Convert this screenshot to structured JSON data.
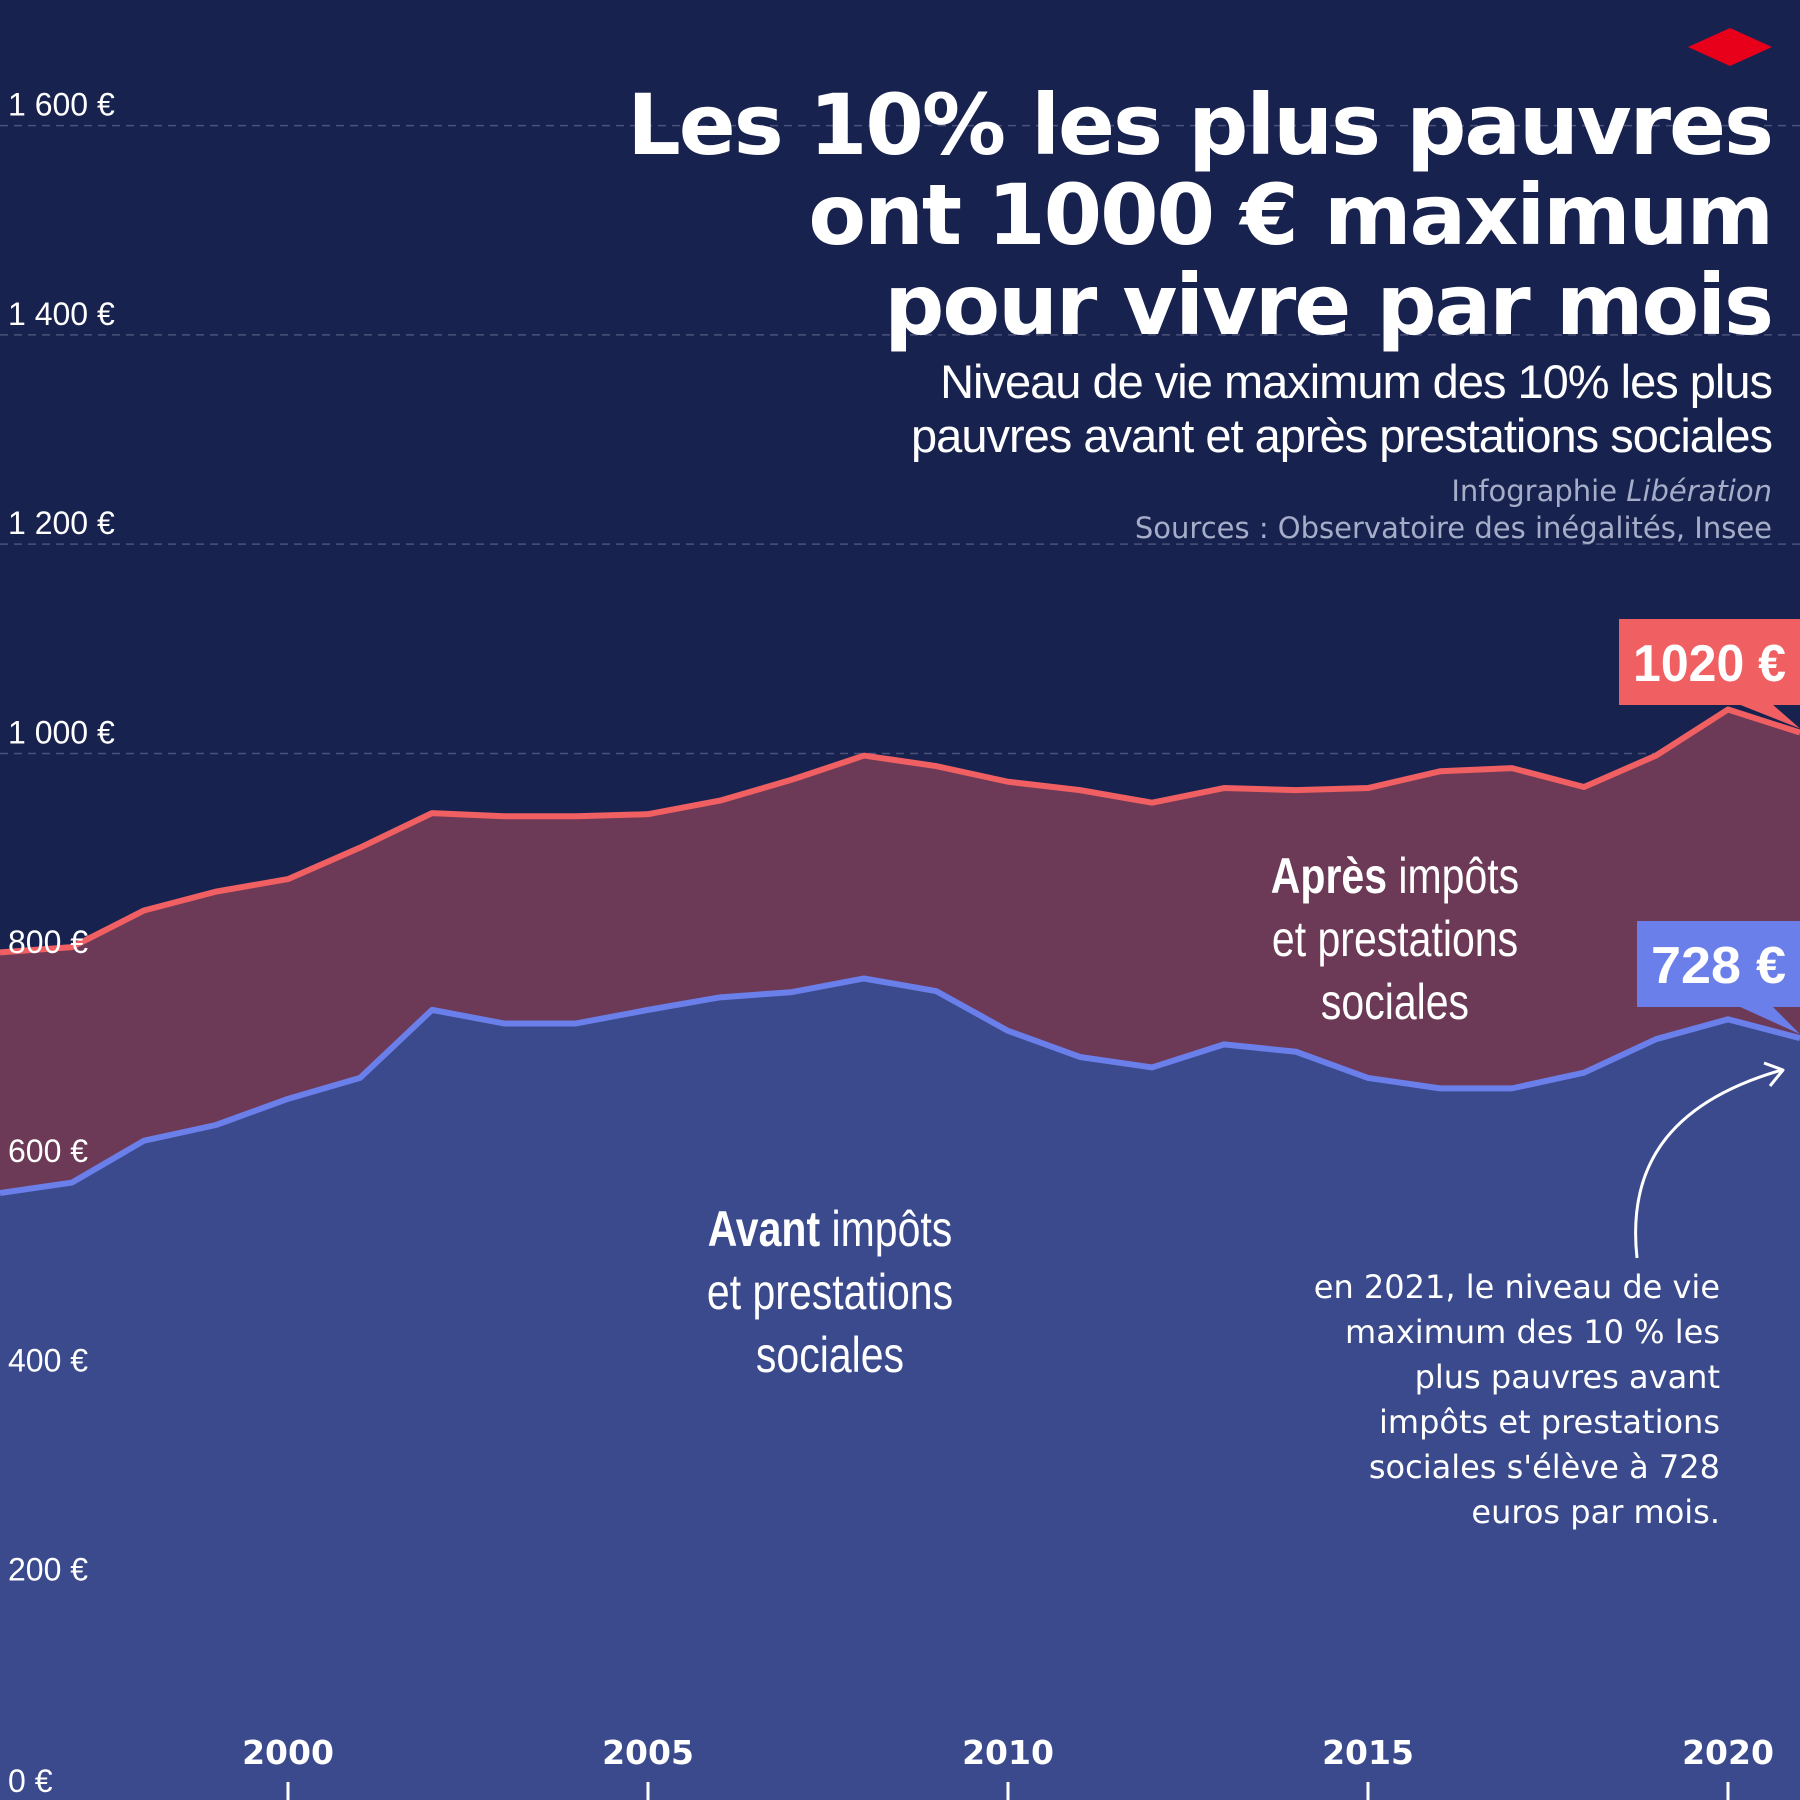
{
  "title": {
    "line1": "Les 10% les plus pauvres",
    "line2": "ont 1000 € maximum",
    "line3": "pour vivre par mois"
  },
  "subtitle": {
    "line1": "Niveau de vie maximum des 10% les plus",
    "line2": "pauvres avant et après prestations sociales"
  },
  "credit": {
    "infographie_prefix": "Infographie",
    "publication": "Libération",
    "sources": "Sources : Observatoire des inégalités, Insee"
  },
  "labels": {
    "after": {
      "bold": "Après",
      "rest_line1": " impôts",
      "line2": "et prestations",
      "line3": "sociales"
    },
    "before": {
      "bold": "Avant",
      "rest_line1": " impôts",
      "line2": "et prestations",
      "line3": "sociales"
    }
  },
  "callouts": {
    "after_value": "1020 €",
    "before_value": "728 €"
  },
  "annotation": {
    "line1": "en 2021, le niveau de vie",
    "line2": "maximum des 10 % les",
    "line3": "plus pauvres avant",
    "line4": "impôts et prestations",
    "line5": "sociales s'élève à 728",
    "line6": "euros par mois."
  },
  "colors": {
    "background": "#18224f",
    "after_line": "#f05f62",
    "after_fill": "#6c3a56",
    "before_line": "#6a7fea",
    "before_fill": "#3a4a8c",
    "after_callout": "#f05f62",
    "before_callout": "#6a7fea",
    "logo": "#e8001b",
    "gridline": "#4b5279"
  },
  "chart_data": {
    "type": "area",
    "x": [
      1996,
      1997,
      1998,
      1999,
      2000,
      2001,
      2002,
      2003,
      2004,
      2005,
      2006,
      2007,
      2008,
      2009,
      2010,
      2011,
      2012,
      2013,
      2014,
      2015,
      2016,
      2017,
      2018,
      2019,
      2020,
      2021
    ],
    "series": [
      {
        "name": "Après impôts et prestations sociales",
        "values": [
          810,
          815,
          850,
          868,
          880,
          910,
          943,
          940,
          940,
          942,
          955,
          975,
          998,
          988,
          973,
          965,
          953,
          967,
          965,
          967,
          983,
          986,
          968,
          998,
          1042,
          1020
        ]
      },
      {
        "name": "Avant impôts et prestations sociales",
        "values": [
          580,
          590,
          630,
          645,
          670,
          690,
          755,
          742,
          742,
          755,
          767,
          772,
          785,
          773,
          735,
          710,
          700,
          722,
          715,
          690,
          680,
          680,
          695,
          727,
          746,
          728
        ]
      }
    ],
    "y_ticks": [
      0,
      200,
      400,
      600,
      800,
      1000,
      1200,
      1400,
      1600
    ],
    "y_tick_labels": [
      "0 €",
      "200 €",
      "400 €",
      "600 €",
      "800 €",
      "1 000 €",
      "1 200 €",
      "1 400 €",
      "1 600 €"
    ],
    "x_ticks": [
      2000,
      2005,
      2010,
      2015,
      2020
    ],
    "x_tick_labels": [
      "2000",
      "2005",
      "2010",
      "2015",
      "2020"
    ],
    "ylim": [
      0,
      1720
    ],
    "xlim": [
      1996,
      2021
    ],
    "grid": "horizontal dashed"
  }
}
